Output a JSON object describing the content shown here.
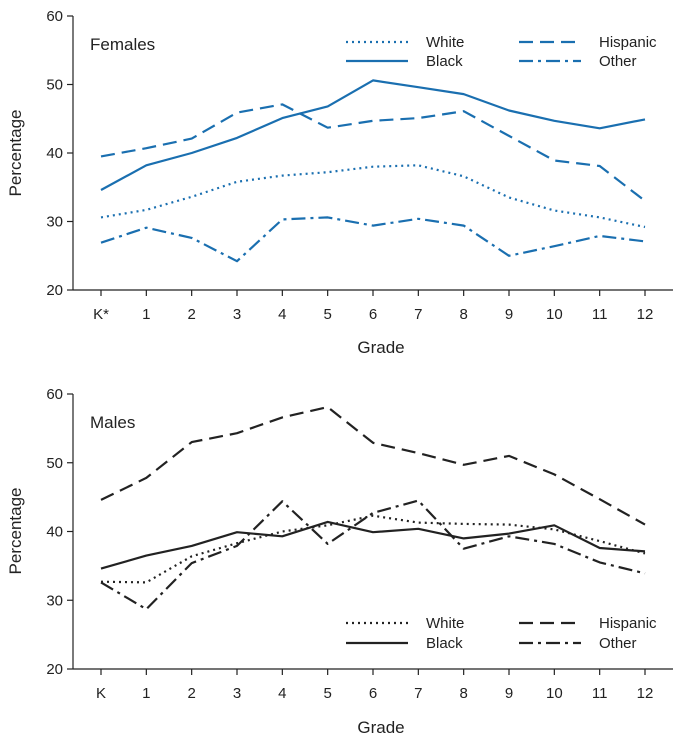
{
  "chart_data": [
    {
      "type": "line",
      "panel_label": "Females",
      "xlabel": "Grade",
      "ylabel": "Percentage",
      "ylim": [
        20,
        60
      ],
      "yticks": [
        20,
        30,
        40,
        50,
        60
      ],
      "categories": [
        "K*",
        "1",
        "2",
        "3",
        "4",
        "5",
        "6",
        "7",
        "8",
        "9",
        "10",
        "11",
        "12"
      ],
      "color": "#1a6fb0",
      "legend_position": "top-right",
      "series": [
        {
          "name": "White",
          "style": "dotted",
          "values": [
            30.6,
            31.7,
            33.6,
            35.8,
            36.7,
            37.2,
            38.0,
            38.2,
            36.6,
            33.5,
            31.6,
            30.6,
            29.2
          ]
        },
        {
          "name": "Black",
          "style": "solid",
          "values": [
            34.6,
            38.2,
            40.0,
            42.2,
            45.1,
            46.8,
            50.6,
            49.6,
            48.6,
            46.2,
            44.7,
            43.6,
            44.9
          ]
        },
        {
          "name": "Hispanic",
          "style": "dashed",
          "values": [
            39.5,
            40.7,
            42.1,
            45.9,
            47.1,
            43.7,
            44.7,
            45.1,
            46.1,
            42.5,
            38.9,
            38.1,
            33.0
          ]
        },
        {
          "name": "Other",
          "style": "dashdot",
          "values": [
            26.9,
            29.1,
            27.6,
            24.2,
            30.3,
            30.6,
            29.4,
            30.4,
            29.4,
            25.0,
            26.4,
            27.9,
            27.1
          ]
        }
      ]
    },
    {
      "type": "line",
      "panel_label": "Males",
      "xlabel": "Grade",
      "ylabel": "Percentage",
      "ylim": [
        20,
        60
      ],
      "yticks": [
        20,
        30,
        40,
        50,
        60
      ],
      "categories": [
        "K",
        "1",
        "2",
        "3",
        "4",
        "5",
        "6",
        "7",
        "8",
        "9",
        "10",
        "11",
        "12"
      ],
      "color": "#222222",
      "legend_position": "bottom-right",
      "series": [
        {
          "name": "White",
          "style": "dotted",
          "values": [
            32.7,
            32.6,
            36.4,
            38.3,
            40.0,
            40.9,
            42.3,
            41.3,
            41.1,
            41.0,
            40.3,
            38.6,
            36.8
          ]
        },
        {
          "name": "Black",
          "style": "solid",
          "values": [
            34.6,
            36.5,
            37.9,
            39.9,
            39.3,
            41.4,
            39.9,
            40.4,
            39.0,
            39.7,
            40.9,
            37.6,
            37.1
          ]
        },
        {
          "name": "Hispanic",
          "style": "dashed",
          "values": [
            44.6,
            47.8,
            53.0,
            54.3,
            56.6,
            58.1,
            52.9,
            51.4,
            49.7,
            51.0,
            48.3,
            44.7,
            41.0
          ]
        },
        {
          "name": "Other",
          "style": "dashdot",
          "values": [
            32.6,
            28.7,
            35.4,
            37.9,
            44.4,
            38.2,
            42.7,
            44.5,
            37.5,
            39.3,
            38.2,
            35.5,
            33.9
          ]
        }
      ]
    }
  ]
}
